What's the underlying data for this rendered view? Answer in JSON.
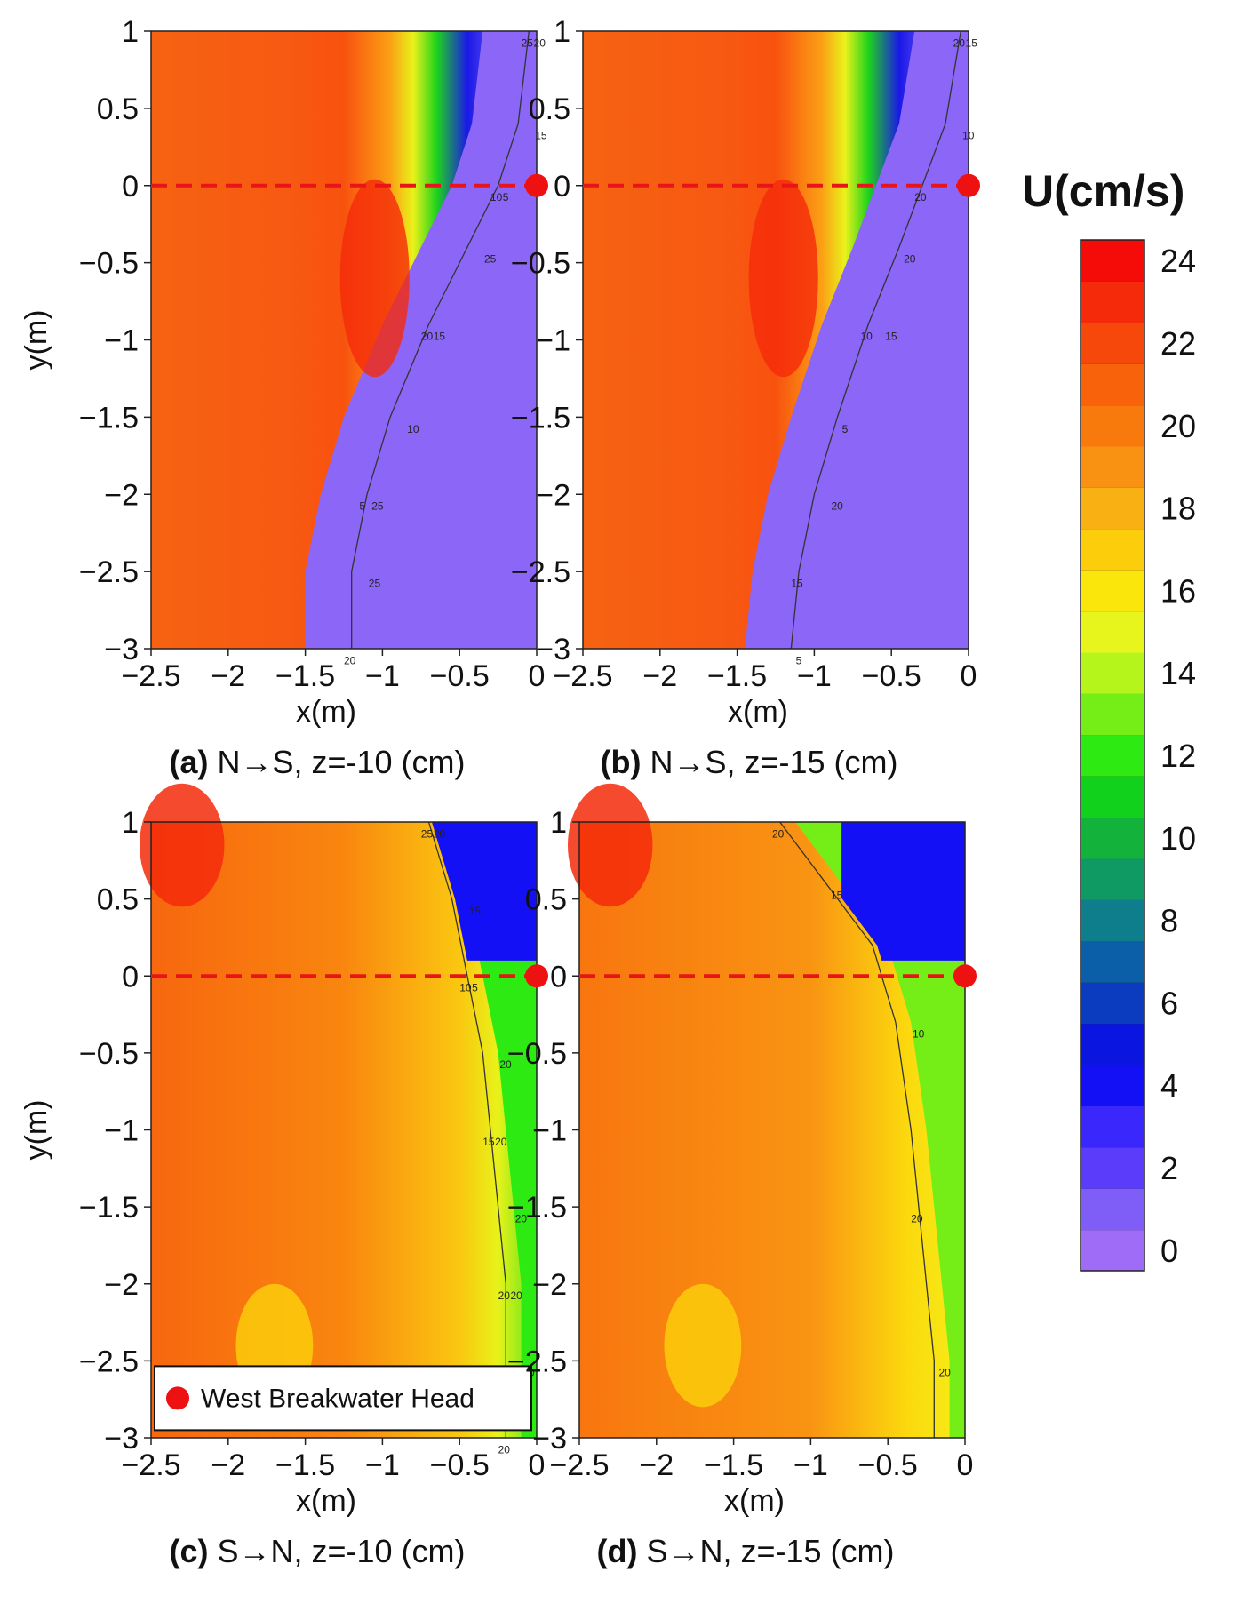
{
  "chart_data": {
    "type": "heatmap",
    "colorbar": {
      "title": "U(cm/s)",
      "ticks": [
        "24",
        "22",
        "20",
        "18",
        "16",
        "14",
        "12",
        "10",
        "8",
        "6",
        "4",
        "2",
        "0"
      ],
      "range": [
        0,
        25
      ],
      "colors": [
        "#9f6cf7",
        "#7f5ef8",
        "#5a3cfa",
        "#3a27fb",
        "#1410f5",
        "#0a16e0",
        "#0b3cc0",
        "#0b5fa8",
        "#0e7d8c",
        "#0f9a63",
        "#12b23b",
        "#11d11c",
        "#2cea12",
        "#74ee16",
        "#b5f51b",
        "#e8f51c",
        "#fbe60b",
        "#fbcd0a",
        "#f9b012",
        "#f99212",
        "#f87a0c",
        "#f8620b",
        "#f7480b",
        "#f52a0a",
        "#f50c09"
      ]
    },
    "panels": [
      {
        "id": "a",
        "caption_bold": "(a)",
        "caption_text": " N→S, z=-10 (cm)",
        "xlabel": "x(m)",
        "ylabel": "y(m)",
        "xlim": [
          -2.5,
          0
        ],
        "ylim": [
          -3,
          1
        ],
        "xticks": [
          "−2.5",
          "−2",
          "−1.5",
          "−1",
          "−0.5",
          "0"
        ],
        "yticks": [
          "1",
          "0.5",
          "0",
          "−0.5",
          "−1",
          "−1.5",
          "−2",
          "−2.5",
          "−3"
        ],
        "contour_labels": [
          "25",
          "20",
          "15",
          "10",
          "5",
          "25",
          "20",
          "15",
          "10",
          "5",
          "25",
          "25",
          "20"
        ],
        "front_x": [
          [
            -0.05,
            1
          ],
          [
            -0.12,
            0.4
          ],
          [
            -0.25,
            0
          ],
          [
            -0.45,
            -0.4
          ],
          [
            -0.7,
            -0.9
          ],
          [
            -0.95,
            -1.5
          ],
          [
            -1.1,
            -2
          ],
          [
            -1.2,
            -2.5
          ],
          [
            -1.2,
            -3
          ]
        ]
      },
      {
        "id": "b",
        "caption_bold": "(b)",
        "caption_text": " N→S, z=-15 (cm)",
        "xlabel": "x(m)",
        "ylabel": "y(m)",
        "xlim": [
          -2.5,
          0
        ],
        "ylim": [
          -3,
          1
        ],
        "xticks": [
          "−2.5",
          "−2",
          "−1.5",
          "−1",
          "−0.5",
          "0"
        ],
        "yticks": [
          "1",
          "0.5",
          "0",
          "−0.5",
          "−1",
          "−1.5",
          "−2",
          "−2.5",
          "−3"
        ],
        "contour_labels": [
          "20",
          "15",
          "10",
          "20",
          "20",
          "15",
          "10",
          "5",
          "20",
          "15",
          "5"
        ],
        "front_x": [
          [
            -0.05,
            1
          ],
          [
            -0.15,
            0.4
          ],
          [
            -0.3,
            0
          ],
          [
            -0.45,
            -0.4
          ],
          [
            -0.65,
            -0.9
          ],
          [
            -0.85,
            -1.5
          ],
          [
            -1.0,
            -2
          ],
          [
            -1.1,
            -2.5
          ],
          [
            -1.15,
            -3
          ]
        ]
      },
      {
        "id": "c",
        "caption_bold": "(c)",
        "caption_text": " S→N, z=-10 (cm)",
        "xlabel": "x(m)",
        "ylabel": "y(m)",
        "xlim": [
          -2.5,
          0
        ],
        "ylim": [
          -3,
          1
        ],
        "xticks": [
          "−2.5",
          "−2",
          "−1.5",
          "−1",
          "−0.5",
          "0"
        ],
        "yticks": [
          "1",
          "0.5",
          "0",
          "−0.5",
          "−1",
          "−1.5",
          "−2",
          "−2.5",
          "−3"
        ],
        "contour_labels": [
          "25",
          "20",
          "15",
          "10",
          "5",
          "20",
          "15",
          "20",
          "20",
          "20",
          "20",
          "20",
          "20"
        ],
        "legend_label": "West Breakwater Head",
        "front_x": [
          [
            -0.7,
            1
          ],
          [
            -0.55,
            0.5
          ],
          [
            -0.45,
            0
          ],
          [
            -0.35,
            -0.5
          ],
          [
            -0.3,
            -1
          ],
          [
            -0.25,
            -1.5
          ],
          [
            -0.2,
            -2
          ],
          [
            -0.2,
            -2.5
          ],
          [
            -0.2,
            -3
          ]
        ]
      },
      {
        "id": "d",
        "caption_bold": "(d)",
        "caption_text": " S→N, z=-15 (cm)",
        "xlabel": "x(m)",
        "ylabel": "y(m)",
        "xlim": [
          -2.5,
          0
        ],
        "ylim": [
          -3,
          1
        ],
        "xticks": [
          "−2.5",
          "−2",
          "−1.5",
          "−1",
          "−0.5",
          "0"
        ],
        "yticks": [
          "1",
          "0.5",
          "0",
          "−0.5",
          "−1",
          "−1.5",
          "−2",
          "−2.5",
          "−3"
        ],
        "contour_labels": [
          "20",
          "15",
          "10",
          "20",
          "20"
        ],
        "front_x": [
          [
            -1.2,
            1
          ],
          [
            -0.9,
            0.6
          ],
          [
            -0.6,
            0.2
          ],
          [
            -0.45,
            -0.3
          ],
          [
            -0.35,
            -1
          ],
          [
            -0.3,
            -1.5
          ],
          [
            -0.25,
            -2
          ],
          [
            -0.2,
            -2.5
          ],
          [
            -0.2,
            -3
          ]
        ]
      }
    ],
    "breakwater_head": {
      "x": 0,
      "y": 0
    }
  }
}
